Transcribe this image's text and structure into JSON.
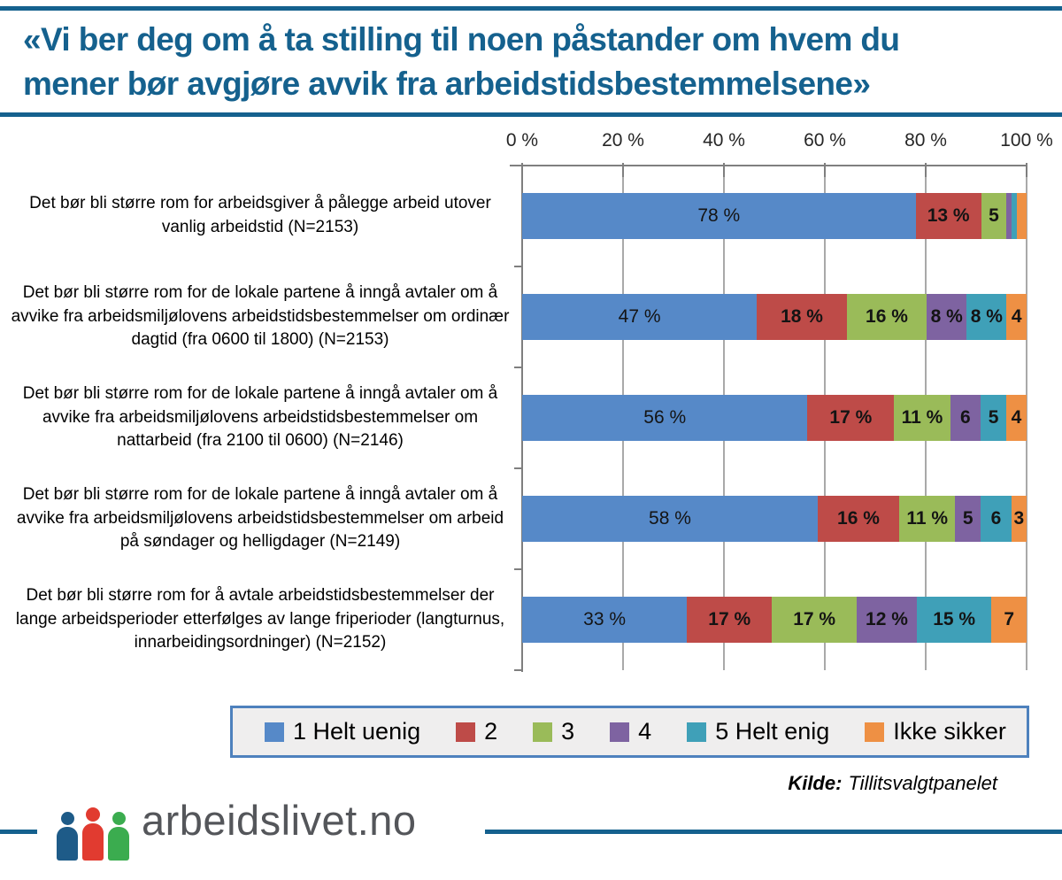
{
  "title": {
    "lines": [
      "«Vi ber deg om å ta stilling til noen påstander om hvem du",
      "mener bør avgjøre avvik fra arbeidstidsbestemmelsene»"
    ],
    "color": "#15618E"
  },
  "source": {
    "prefix": "Kilde:",
    "text": "Tillitsvalgtpanelet"
  },
  "footer": {
    "logo_text": "arbeidslivet.no",
    "logo_icon": "three-people-icon",
    "logo_person_colors": [
      "#1E5B88",
      "#E13B30",
      "#3BAC4F"
    ],
    "line_color": "#15618E"
  },
  "colors": {
    "rule": "#15618E",
    "gridline": "#A9A9A9",
    "axis": "#7F7F7F",
    "legend_border": "#4E81BD",
    "legend_background": "#EFEEEE",
    "logo_text": "#54565A"
  },
  "chart_data": {
    "type": "bar",
    "stacked": true,
    "orientation": "horizontal",
    "grid": true,
    "legend_position": "bottom",
    "x_axis": {
      "ticks": [
        "0 %",
        "20 %",
        "40 %",
        "60 %",
        "80 %",
        "100 %"
      ],
      "range": [
        0,
        100
      ]
    },
    "categories": [
      "Det bør bli større rom for arbeidsgiver å pålegge arbeid utover vanlig arbeidstid (N=2153)",
      "Det bør bli større rom for de lokale partene å inngå avtaler om å avvike fra arbeidsmiljølovens arbeidstidsbestemmelser om ordinær dagtid (fra 0600 til 1800) (N=2153)",
      "Det bør bli større rom for de lokale partene å inngå avtaler om å avvike fra arbeidsmiljølovens arbeidstidsbestemmelser om nattarbeid (fra 2100 til 0600) (N=2146)",
      "Det bør bli større rom for de lokale partene å inngå avtaler om å avvike fra arbeidsmiljølovens arbeidstidsbestemmelser om arbeid på søndager og helligdager (N=2149)",
      "Det bør bli større rom for å avtale arbeidstidsbestemmelser der lange arbeidsperioder etterfølges av lange friperioder (langturnus, innarbeidingsordninger) (N=2152)"
    ],
    "series": [
      {
        "name": "1 Helt uenig",
        "color": "#5689C8",
        "bold_labels": false,
        "values": [
          78,
          47,
          56,
          58,
          33
        ],
        "labels": [
          "78 %",
          "47 %",
          "56 %",
          "58 %",
          "33 %"
        ]
      },
      {
        "name": "2",
        "color": "#BE4B48",
        "bold_labels": true,
        "values": [
          13,
          18,
          17,
          16,
          17
        ],
        "labels": [
          "13 %",
          "18 %",
          "17 %",
          "16 %",
          "17 %"
        ]
      },
      {
        "name": "3",
        "color": "#9ABB59",
        "bold_labels": true,
        "values": [
          5,
          16,
          11,
          11,
          17
        ],
        "labels": [
          "5",
          "16 %",
          "11 %",
          "11 %",
          "17 %"
        ]
      },
      {
        "name": "4",
        "color": "#7E63A1",
        "bold_labels": true,
        "values": [
          1,
          8,
          6,
          5,
          12
        ],
        "labels": [
          "",
          "8 %",
          "6",
          "5",
          "12 %"
        ]
      },
      {
        "name": "5 Helt enig",
        "color": "#3FA0B8",
        "bold_labels": true,
        "values": [
          1,
          8,
          5,
          6,
          15
        ],
        "labels": [
          "",
          "8 %",
          "5",
          "6",
          "15 %"
        ]
      },
      {
        "name": "Ikke sikker",
        "color": "#EE9044",
        "bold_labels": true,
        "values": [
          2,
          4,
          4,
          3,
          7
        ],
        "labels": [
          "",
          "4",
          "4",
          "3",
          "7"
        ]
      }
    ]
  }
}
